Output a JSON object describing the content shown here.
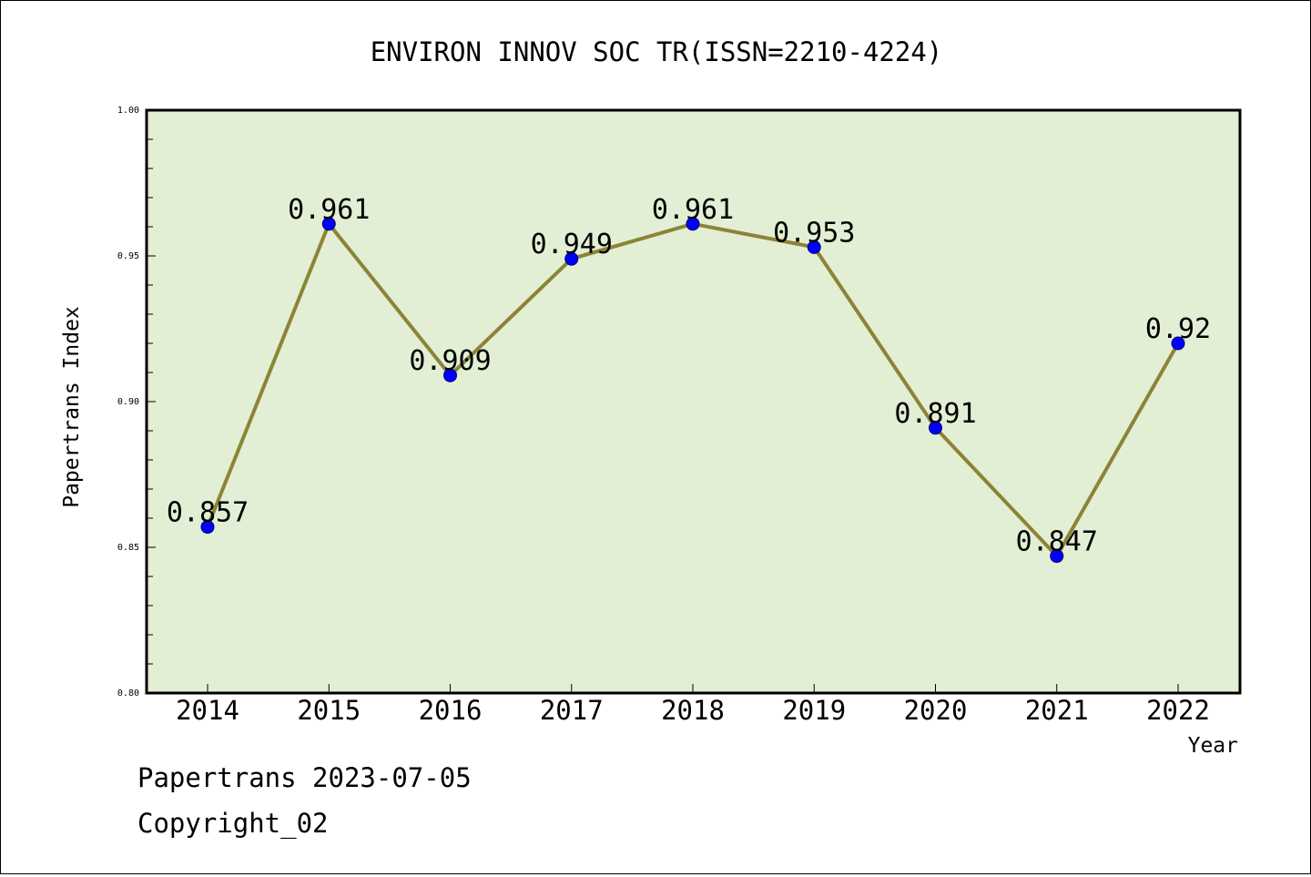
{
  "chart_data": {
    "type": "line",
    "title": "ENVIRON INNOV SOC TR(ISSN=2210-4224)",
    "xlabel": "Year",
    "ylabel": "Papertrans Index",
    "categories": [
      "2014",
      "2015",
      "2016",
      "2017",
      "2018",
      "2019",
      "2020",
      "2021",
      "2022"
    ],
    "values": [
      0.857,
      0.961,
      0.909,
      0.949,
      0.961,
      0.953,
      0.891,
      0.847,
      0.92
    ],
    "data_labels": [
      "0.857",
      "0.961",
      "0.909",
      "0.949",
      "0.961",
      "0.953",
      "0.891",
      "0.847",
      "0.92"
    ],
    "ylim": [
      0.8,
      1.0
    ],
    "yticks": [
      "0.80",
      "0.85",
      "0.90",
      "0.95",
      "1.00"
    ],
    "grid": false,
    "legend": "none",
    "colors": {
      "plot_background": "#e2efd4",
      "line": "#8b8436",
      "marker": "#0000ff"
    }
  },
  "footer": {
    "date_line": "Papertrans 2023-07-05",
    "copyright": "Copyright_02"
  }
}
